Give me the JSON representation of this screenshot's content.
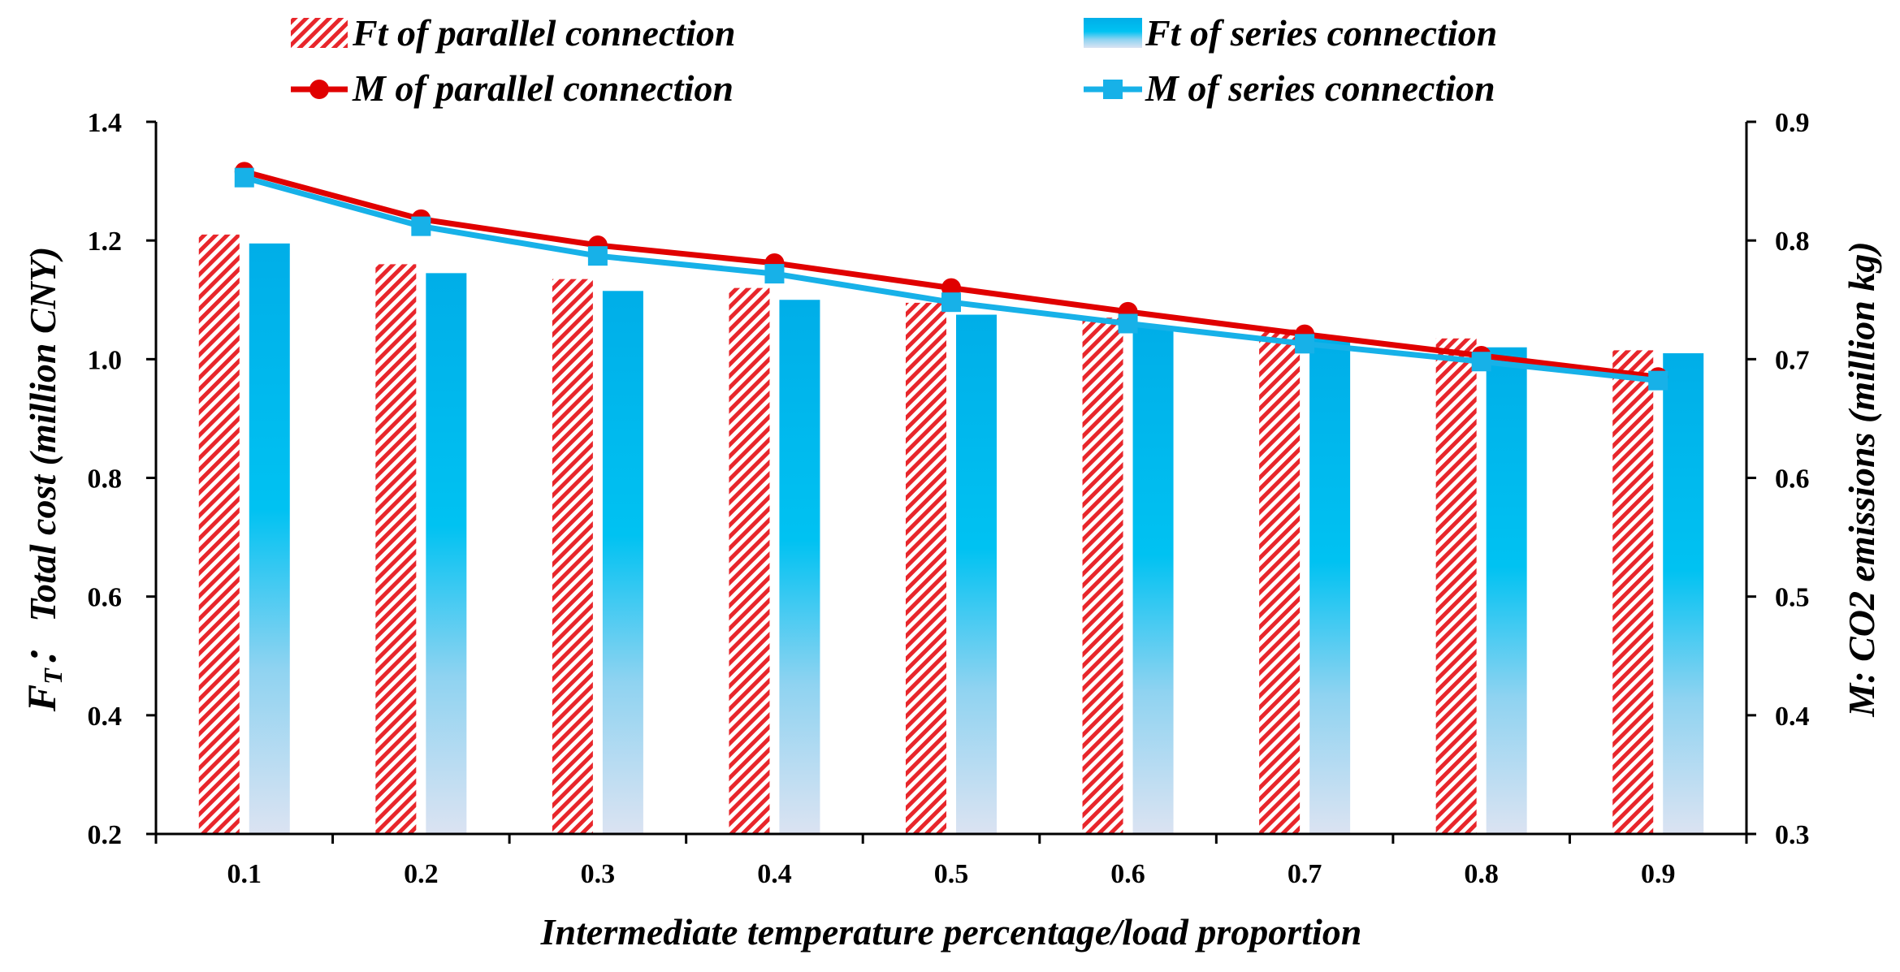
{
  "chart_data": {
    "type": "bar",
    "categories": [
      "0.1",
      "0.2",
      "0.3",
      "0.4",
      "0.5",
      "0.6",
      "0.7",
      "0.8",
      "0.9"
    ],
    "xlabel": "Intermediate temperature percentage/load proportion",
    "ylabel_left_symbol": "F",
    "ylabel_left_subscript": "T",
    "ylabel_left_rest": "： Total cost (million CNY)",
    "ylabel_right": "M: CO2 emissions (million kg)",
    "ylim_left": [
      0.2,
      1.4
    ],
    "yticks_left": [
      "0.2",
      "0.4",
      "0.6",
      "0.8",
      "1.0",
      "1.2",
      "1.4"
    ],
    "ylim_right": [
      0.3,
      0.9
    ],
    "yticks_right": [
      "0.3",
      "0.4",
      "0.5",
      "0.6",
      "0.7",
      "0.8",
      "0.9"
    ],
    "series": [
      {
        "name": "Ft of parallel connection",
        "kind": "bar",
        "axis": "left",
        "color": "#e8262b",
        "values": [
          1.21,
          1.16,
          1.135,
          1.12,
          1.095,
          1.07,
          1.05,
          1.035,
          1.015
        ]
      },
      {
        "name": "Ft of series connection",
        "kind": "bar",
        "axis": "left",
        "color": "#00b0f0",
        "values": [
          1.195,
          1.145,
          1.115,
          1.1,
          1.075,
          1.055,
          1.035,
          1.02,
          1.01
        ]
      },
      {
        "name": "M of parallel connection",
        "kind": "line",
        "marker": "circle",
        "axis": "right",
        "color": "#e00000",
        "values": [
          0.858,
          0.818,
          0.796,
          0.781,
          0.76,
          0.74,
          0.721,
          0.703,
          0.685
        ]
      },
      {
        "name": "M of series connection",
        "kind": "line",
        "marker": "square",
        "axis": "right",
        "color": "#17b1e8",
        "values": [
          0.853,
          0.812,
          0.787,
          0.772,
          0.748,
          0.73,
          0.713,
          0.698,
          0.682
        ]
      }
    ]
  }
}
